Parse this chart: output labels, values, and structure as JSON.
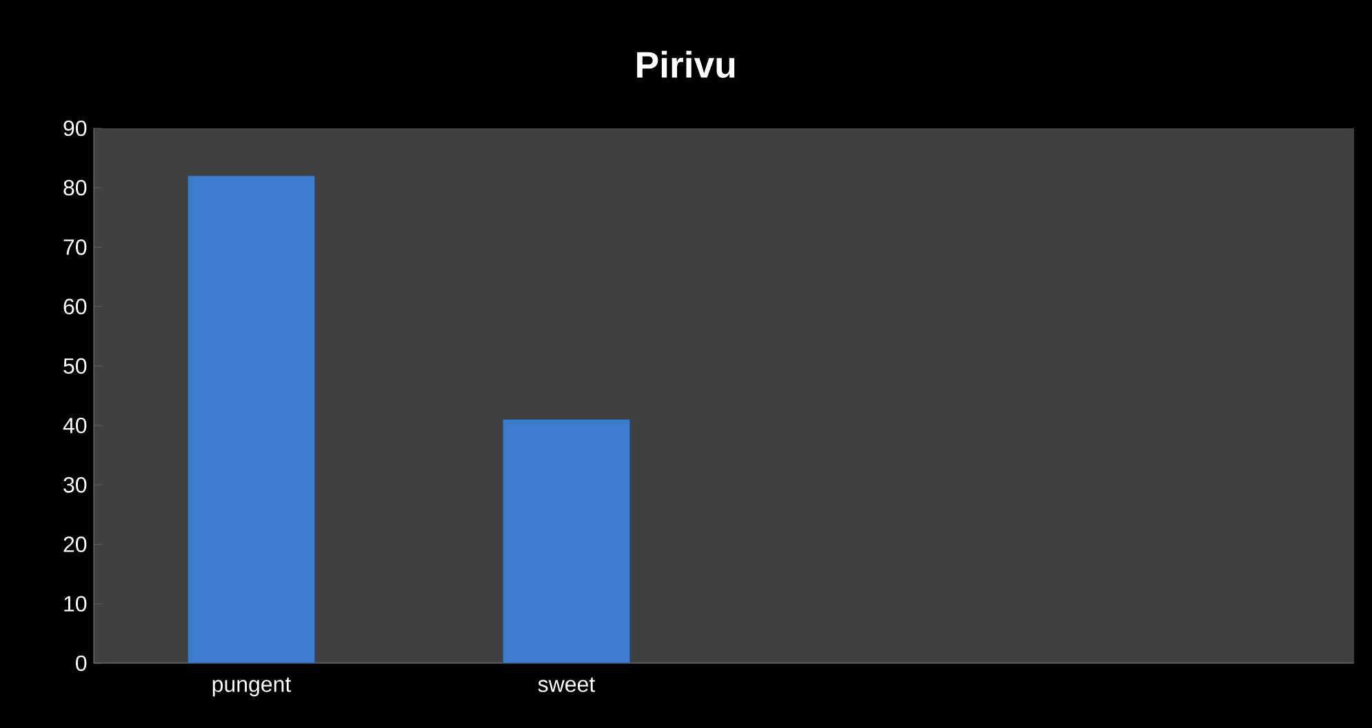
{
  "chart_data": {
    "type": "bar",
    "title": "Pirivu",
    "categories": [
      "pungent",
      "sweet",
      null,
      null
    ],
    "values": [
      82,
      41,
      null,
      null
    ],
    "color": "#3d7ccc",
    "ylim": [
      0,
      90
    ],
    "yticks": [
      0,
      10,
      20,
      30,
      40,
      50,
      60,
      70,
      80,
      90
    ],
    "grid": false
  }
}
